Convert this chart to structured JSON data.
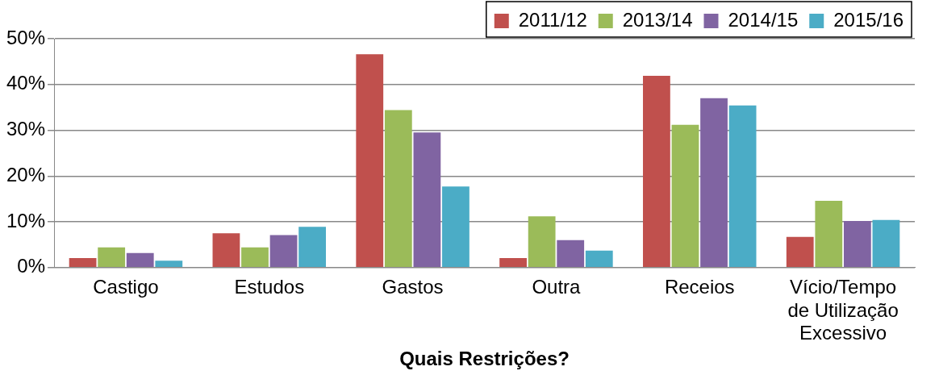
{
  "chart_data": {
    "type": "bar",
    "xlabel": "Quais Restrições?",
    "categories": [
      "Castigo",
      "Estudos",
      "Gastos",
      "Outra",
      "Receios",
      "Vício/Tempo de Utilização Excessivo"
    ],
    "series": [
      {
        "name": "2011/12",
        "color": "#c0504d",
        "values": [
          2.1,
          7.5,
          46.6,
          2.1,
          41.9,
          6.7
        ]
      },
      {
        "name": "2013/14",
        "color": "#9bbb59",
        "values": [
          4.4,
          4.4,
          34.4,
          11.2,
          31.2,
          14.6
        ]
      },
      {
        "name": "2014/15",
        "color": "#8064a2",
        "values": [
          3.2,
          7.1,
          29.5,
          6.0,
          37.0,
          10.2
        ]
      },
      {
        "name": "2015/16",
        "color": "#4bacc6",
        "values": [
          1.5,
          8.9,
          17.7,
          3.7,
          35.4,
          10.4
        ]
      }
    ],
    "ylim": [
      0,
      50
    ],
    "yticks": [
      {
        "value": 0,
        "label": "0%"
      },
      {
        "value": 10,
        "label": "10%"
      },
      {
        "value": 20,
        "label": "20%"
      },
      {
        "value": 30,
        "label": "30%"
      },
      {
        "value": 40,
        "label": "40%"
      },
      {
        "value": 50,
        "label": "50%"
      }
    ],
    "grid": "y",
    "legend": "top right"
  }
}
